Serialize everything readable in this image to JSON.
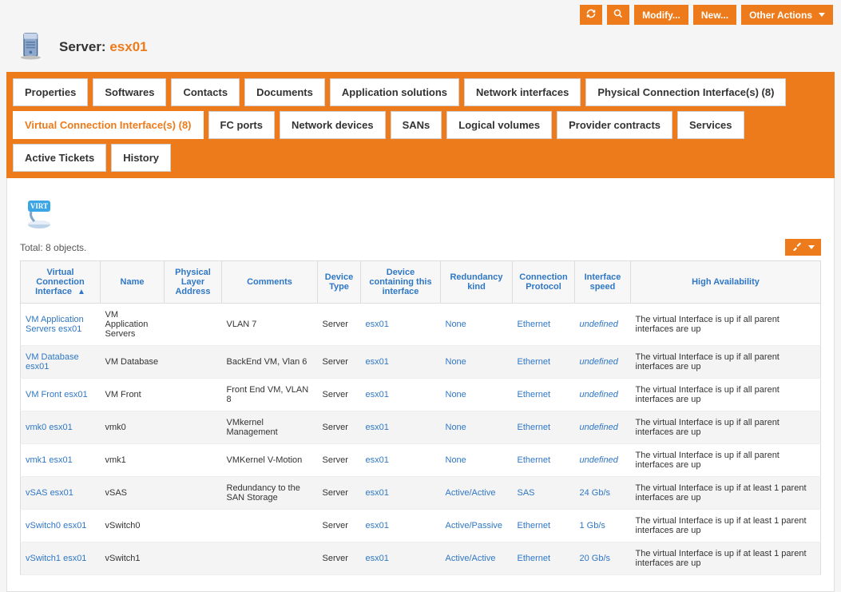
{
  "colors": {
    "accent": "#ee7b1b",
    "link": "#2f77c5",
    "page_bg": "#f5f5f5"
  },
  "toolbar": {
    "refresh_title": "Refresh",
    "search_title": "Search",
    "modify_label": "Modify...",
    "new_label": "New...",
    "other_actions_label": "Other Actions"
  },
  "header": {
    "prefix": "Server:",
    "name": "esx01"
  },
  "tabs": [
    {
      "label": "Properties",
      "active": false
    },
    {
      "label": "Softwares",
      "active": false
    },
    {
      "label": "Contacts",
      "active": false
    },
    {
      "label": "Documents",
      "active": false
    },
    {
      "label": "Application solutions",
      "active": false
    },
    {
      "label": "Network interfaces",
      "active": false
    },
    {
      "label": "Physical Connection Interface(s) (8)",
      "active": false
    },
    {
      "label": "Virtual Connection Interface(s) (8)",
      "active": true
    },
    {
      "label": "FC ports",
      "active": false
    },
    {
      "label": "Network devices",
      "active": false
    },
    {
      "label": "SANs",
      "active": false
    },
    {
      "label": "Logical volumes",
      "active": false
    },
    {
      "label": "Provider contracts",
      "active": false
    },
    {
      "label": "Services",
      "active": false
    },
    {
      "label": "Active Tickets",
      "active": false
    },
    {
      "label": "History",
      "active": false
    }
  ],
  "list": {
    "total_label": "Total: 8 objects.",
    "tools_title": "Tools",
    "columns": [
      "Virtual Connection Interface",
      "Name",
      "Physical Layer Address",
      "Comments",
      "Device Type",
      "Device containing this interface",
      "Redundancy kind",
      "Connection Protocol",
      "Interface speed",
      "High Availability"
    ],
    "sort_col_index": 0,
    "rows": [
      {
        "vci": "VM Application Servers esx01",
        "name": "VM Application Servers",
        "pla": "",
        "comments": "VLAN 7",
        "devtype": "Server",
        "devcont": "esx01",
        "redundancy": "None",
        "protocol": "Ethernet",
        "speed": "undefined",
        "speed_italic": true,
        "ha": "The virtual Interface is up if all parent interfaces are up"
      },
      {
        "vci": "VM Database esx01",
        "name": "VM Database",
        "pla": "",
        "comments": "BackEnd VM, Vlan 6",
        "devtype": "Server",
        "devcont": "esx01",
        "redundancy": "None",
        "protocol": "Ethernet",
        "speed": "undefined",
        "speed_italic": true,
        "ha": "The virtual Interface is up if all parent interfaces are up"
      },
      {
        "vci": "VM Front esx01",
        "name": "VM Front",
        "pla": "",
        "comments": "Front End VM, VLAN 8",
        "devtype": "Server",
        "devcont": "esx01",
        "redundancy": "None",
        "protocol": "Ethernet",
        "speed": "undefined",
        "speed_italic": true,
        "ha": "The virtual Interface is up if all parent interfaces are up"
      },
      {
        "vci": "vmk0 esx01",
        "name": "vmk0",
        "pla": "",
        "comments": "VMkernel Management",
        "devtype": "Server",
        "devcont": "esx01",
        "redundancy": "None",
        "protocol": "Ethernet",
        "speed": "undefined",
        "speed_italic": true,
        "ha": "The virtual Interface is up if all parent interfaces are up"
      },
      {
        "vci": "vmk1 esx01",
        "name": "vmk1",
        "pla": "",
        "comments": "VMKernel V-Motion",
        "devtype": "Server",
        "devcont": "esx01",
        "redundancy": "None",
        "protocol": "Ethernet",
        "speed": "undefined",
        "speed_italic": true,
        "ha": "The virtual Interface is up if all parent interfaces are up"
      },
      {
        "vci": "vSAS esx01",
        "name": "vSAS",
        "pla": "",
        "comments": "Redundancy to the SAN Storage",
        "devtype": "Server",
        "devcont": "esx01",
        "redundancy": "Active/Active",
        "protocol": "SAS",
        "speed": "24 Gb/s",
        "speed_italic": false,
        "ha": "The virtual Interface is up if at least 1 parent interfaces are up"
      },
      {
        "vci": "vSwitch0 esx01",
        "name": "vSwitch0",
        "pla": "",
        "comments": "",
        "devtype": "Server",
        "devcont": "esx01",
        "redundancy": "Active/Passive",
        "protocol": "Ethernet",
        "speed": "1 Gb/s",
        "speed_italic": false,
        "ha": "The virtual Interface is up if at least 1 parent interfaces are up"
      },
      {
        "vci": "vSwitch1 esx01",
        "name": "vSwitch1",
        "pla": "",
        "comments": "",
        "devtype": "Server",
        "devcont": "esx01",
        "redundancy": "Active/Active",
        "protocol": "Ethernet",
        "speed": "20 Gb/s",
        "speed_italic": false,
        "ha": "The virtual Interface is up if at least 1 parent interfaces are up"
      }
    ]
  }
}
